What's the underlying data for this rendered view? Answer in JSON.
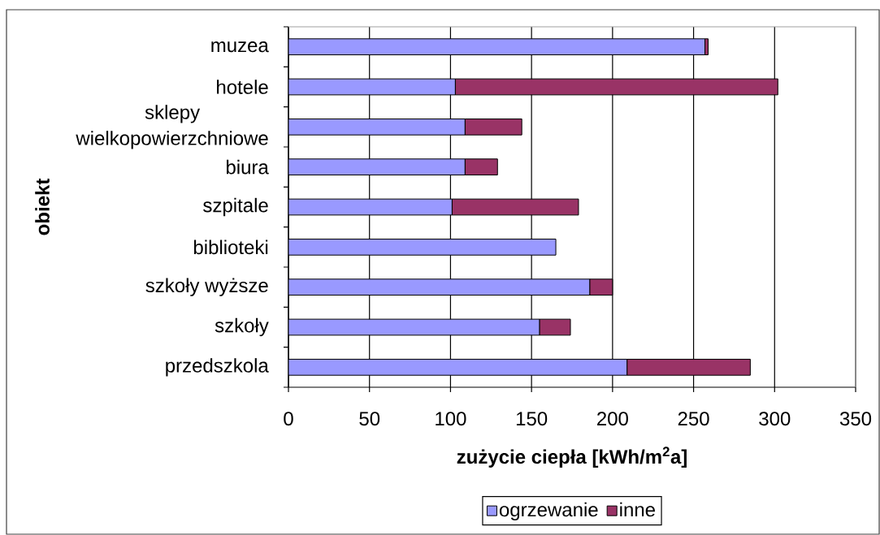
{
  "chart_data": {
    "type": "bar",
    "orientation": "horizontal",
    "stacked": true,
    "xlabel": "zużycie ciepła [kWh/m$^{2}$a]",
    "ylabel": "obiekt",
    "categories": [
      "muzea",
      "hotele",
      "sklepy wielkopowierzchniowe",
      "biura",
      "szpitale",
      "biblioteki",
      "szkoły wyższe",
      "szkoły",
      "przedszkola"
    ],
    "series": [
      {
        "name": "ogrzewanie",
        "color": "#9999ff",
        "values": [
          257,
          103,
          109,
          109,
          101,
          165,
          186,
          155,
          209
        ]
      },
      {
        "name": "inne",
        "color": "#993366",
        "values": [
          2,
          199,
          35,
          20,
          78,
          null,
          14,
          19,
          76
        ]
      }
    ],
    "xlim": [
      0,
      350
    ],
    "xticks": [
      0,
      50,
      100,
      150,
      200,
      250,
      300,
      350
    ],
    "grid": "x",
    "legend": "bottom"
  }
}
